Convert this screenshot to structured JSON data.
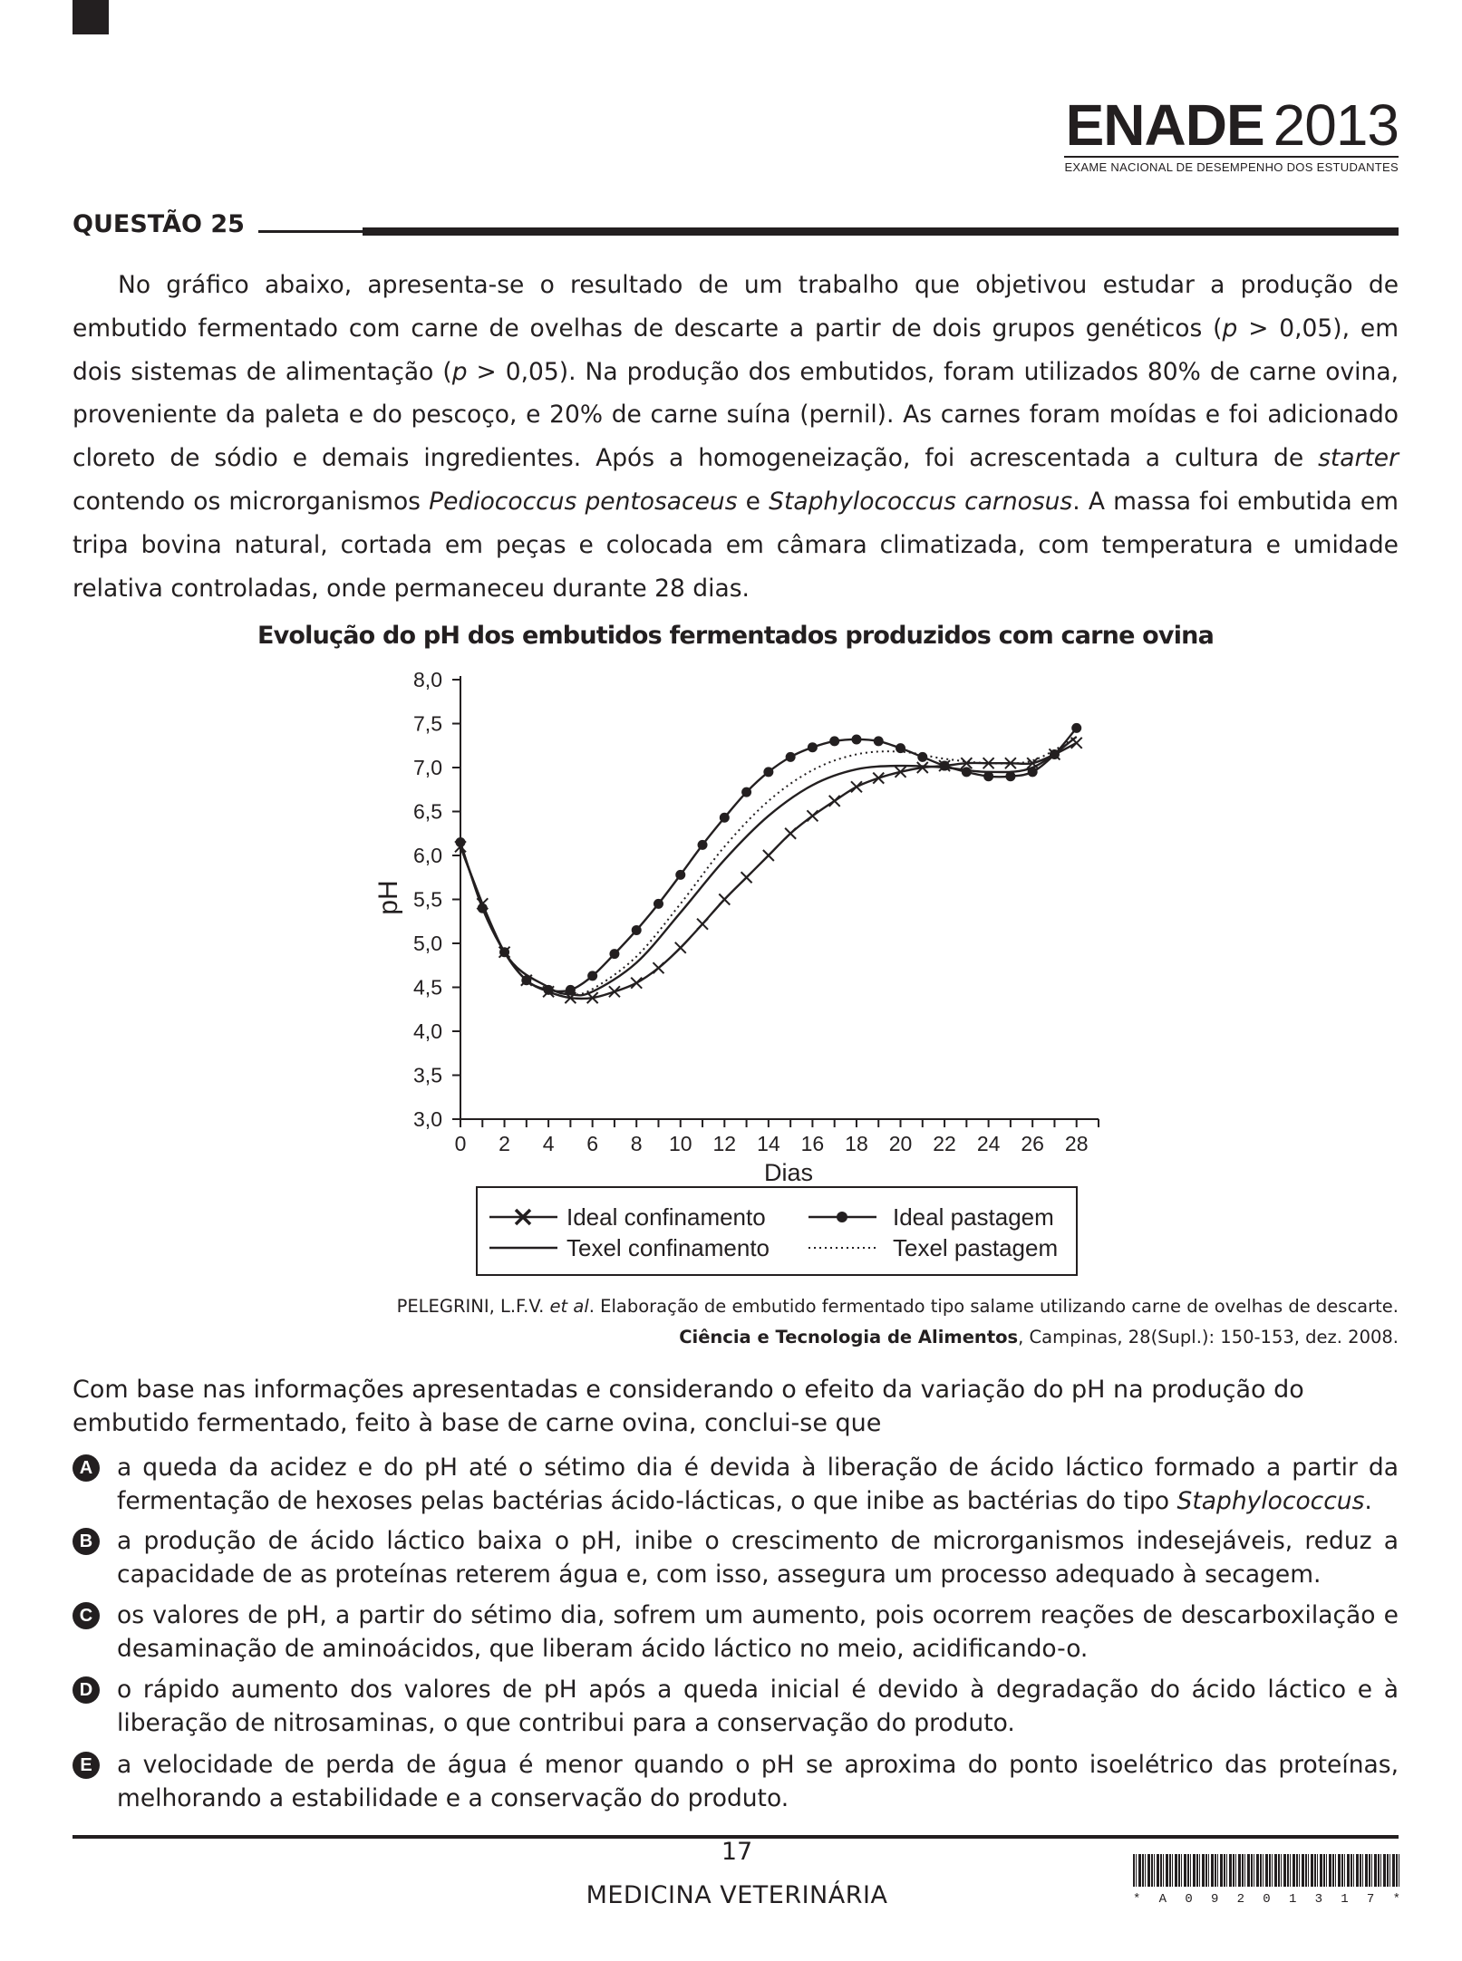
{
  "header": {
    "logo_word": "ENADE",
    "logo_year": "2013",
    "logo_subtitle": "EXAME NACIONAL DE DESEMPENHO DOS ESTUDANTES"
  },
  "question": {
    "title": "QUESTÃO 25",
    "intro": [
      {
        "t": "No gráfico abaixo, apresenta-se o resultado de um trabalho que objetivou estudar a produção de embutido fermentado com carne de ovelhas de descarte a partir de dois grupos genéticos ("
      },
      {
        "t": "p",
        "i": true
      },
      {
        "t": " > 0,05), em dois sistemas de alimentação ("
      },
      {
        "t": "p",
        "i": true
      },
      {
        "t": " > 0,05). Na produção dos embutidos, foram utilizados 80% de carne ovina, proveniente da paleta e do pescoço, e 20% de carne suína (pernil). As carnes foram moídas e foi adicionado cloreto de sódio e demais ingredientes. Após a homogeneização, foi acrescentada a cultura de "
      },
      {
        "t": "starter",
        "i": true
      },
      {
        "t": " contendo os microrganismos "
      },
      {
        "t": "Pediococcus pentosaceus",
        "i": true
      },
      {
        "t": " e "
      },
      {
        "t": "Staphylococcus carnosus",
        "i": true
      },
      {
        "t": ". A massa foi embutida em tripa bovina natural, cortada em peças e colocada em câmara climatizada, com temperatura e umidade relativa controladas, onde permaneceu durante 28 dias."
      }
    ]
  },
  "chart_data": {
    "type": "line",
    "title": "Evolução do pH dos embutidos fermentados produzidos com carne ovina",
    "xlabel": "Dias",
    "ylabel": "pH",
    "xlim": [
      0,
      29
    ],
    "ylim": [
      3.0,
      8.0
    ],
    "x_ticks": [
      0,
      2,
      4,
      6,
      8,
      10,
      12,
      14,
      16,
      18,
      20,
      22,
      24,
      26,
      28
    ],
    "y_ticks": [
      "3,0",
      "3,5",
      "4,0",
      "4,5",
      "5,0",
      "5,5",
      "6,0",
      "6,5",
      "7,0",
      "7,5",
      "8,0"
    ],
    "y_tick_values": [
      3.0,
      3.5,
      4.0,
      4.5,
      5.0,
      5.5,
      6.0,
      6.5,
      7.0,
      7.5,
      8.0
    ],
    "legend_position": "bottom",
    "series": [
      {
        "name": "Ideal confinamento",
        "marker": "x",
        "style": "solid",
        "x": [
          0,
          1,
          2,
          3,
          4,
          5,
          6,
          7,
          8,
          9,
          10,
          11,
          12,
          13,
          14,
          15,
          16,
          17,
          18,
          19,
          20,
          21,
          22,
          23,
          24,
          25,
          26,
          27,
          28
        ],
        "y": [
          6.1,
          5.45,
          4.9,
          4.58,
          4.45,
          4.38,
          4.38,
          4.45,
          4.55,
          4.72,
          4.95,
          5.22,
          5.5,
          5.75,
          6.0,
          6.25,
          6.45,
          6.62,
          6.78,
          6.88,
          6.95,
          7.0,
          7.02,
          7.05,
          7.05,
          7.05,
          7.05,
          7.15,
          7.28
        ]
      },
      {
        "name": "Ideal pastagem",
        "marker": "dot",
        "style": "solid",
        "x": [
          0,
          1,
          2,
          3,
          4,
          5,
          6,
          7,
          8,
          9,
          10,
          11,
          12,
          13,
          14,
          15,
          16,
          17,
          18,
          19,
          20,
          21,
          22,
          23,
          24,
          25,
          26,
          27,
          28
        ],
        "y": [
          6.15,
          5.4,
          4.9,
          4.58,
          4.47,
          4.47,
          4.63,
          4.88,
          5.15,
          5.45,
          5.78,
          6.12,
          6.43,
          6.72,
          6.95,
          7.12,
          7.23,
          7.3,
          7.32,
          7.3,
          7.22,
          7.12,
          7.02,
          6.95,
          6.9,
          6.9,
          6.95,
          7.15,
          7.45
        ]
      },
      {
        "name": "Texel confinamento",
        "marker": "none",
        "style": "solid",
        "x": [
          0,
          2,
          4,
          5,
          6,
          8,
          10,
          12,
          14,
          16,
          18,
          20,
          22,
          24,
          26,
          28
        ],
        "y": [
          6.1,
          4.9,
          4.5,
          4.42,
          4.45,
          4.78,
          5.35,
          5.95,
          6.45,
          6.8,
          6.98,
          7.02,
          7.0,
          6.95,
          7.0,
          7.35
        ]
      },
      {
        "name": "Texel pastagem",
        "marker": "none",
        "style": "dotted",
        "x": [
          0,
          2,
          4,
          5,
          6,
          8,
          10,
          12,
          14,
          16,
          18,
          20,
          22,
          24,
          26,
          28
        ],
        "y": [
          6.1,
          4.9,
          4.5,
          4.42,
          4.48,
          4.85,
          5.45,
          6.1,
          6.62,
          6.97,
          7.15,
          7.18,
          7.1,
          7.05,
          7.08,
          7.35
        ]
      }
    ]
  },
  "reference": {
    "line1_a": "PELEGRINI, L.F.V. ",
    "line1_i": "et al",
    "line1_b": ". Elaboração de embutido fermentado tipo salame utilizando carne de ovelhas de descarte.",
    "line2_bold": "Ciência e Tecnologia de Alimentos",
    "line2_rest": ", Campinas, 28(Supl.): 150-153, dez. 2008."
  },
  "stem": "Com base nas informações apresentadas e considerando o efeito da variação do pH na produção do embutido fermentado, feito à base de carne ovina, conclui-se que",
  "options": [
    {
      "letter": "A",
      "segments": [
        {
          "t": "a queda da acidez e do pH até o sétimo dia é devida à liberação de ácido láctico formado a partir da fermentação de hexoses pelas bactérias ácido-lácticas, o que inibe as bactérias do tipo "
        },
        {
          "t": "Staphylococcus",
          "i": true
        },
        {
          "t": "."
        }
      ]
    },
    {
      "letter": "B",
      "segments": [
        {
          "t": "a produção de ácido láctico baixa o pH, inibe o crescimento de microrganismos indesejáveis, reduz a capacidade de as proteínas reterem água e, com isso, assegura um processo adequado à secagem."
        }
      ]
    },
    {
      "letter": "C",
      "segments": [
        {
          "t": "os valores de pH, a partir do sétimo dia, sofrem um aumento, pois ocorrem reações de descarboxilação e desaminação de aminoácidos, que liberam ácido láctico no meio, acidificando-o."
        }
      ]
    },
    {
      "letter": "D",
      "segments": [
        {
          "t": "o rápido aumento dos valores de pH após a queda inicial é devido à degradação do ácido láctico e à liberação de nitrosaminas, o que contribui para a conservação do produto."
        }
      ]
    },
    {
      "letter": "E",
      "segments": [
        {
          "t": "a velocidade de perda de água é menor quando o pH se aproxima do ponto isoelétrico das proteínas, melhorando a estabilidade e a conservação do produto."
        }
      ]
    }
  ],
  "footer": {
    "page_number": "17",
    "course": "MEDICINA VETERINÁRIA",
    "barcode_text": [
      "*",
      "A",
      "0",
      "9",
      "2",
      "0",
      "1",
      "3",
      "1",
      "7",
      "*"
    ]
  }
}
